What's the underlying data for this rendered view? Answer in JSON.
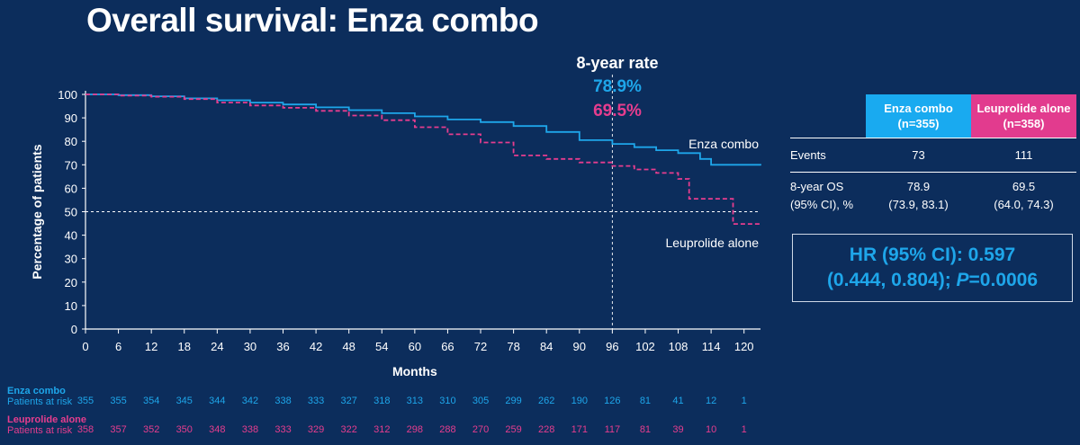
{
  "title": "Overall survival: Enza combo",
  "chart_data": {
    "type": "line",
    "subtype": "kaplan-meier",
    "xlabel": "Months",
    "ylabel": "Percentage of patients",
    "xlim": [
      0,
      123
    ],
    "ylim": [
      0,
      100
    ],
    "xticks": [
      0,
      6,
      12,
      18,
      24,
      30,
      36,
      42,
      48,
      54,
      60,
      66,
      72,
      78,
      84,
      90,
      96,
      102,
      108,
      114,
      120
    ],
    "yticks": [
      0,
      10,
      20,
      30,
      40,
      50,
      60,
      70,
      80,
      90,
      100
    ],
    "reference_y": 50,
    "reference_x": 96,
    "series": [
      {
        "name": "Enza combo",
        "color": "#1ea6ea",
        "style": "solid",
        "x": [
          0,
          6,
          12,
          18,
          24,
          30,
          36,
          42,
          48,
          54,
          60,
          66,
          72,
          78,
          84,
          90,
          96,
          100,
          104,
          108,
          112,
          114,
          120,
          123
        ],
        "y": [
          100,
          99.7,
          99.2,
          98.3,
          97.5,
          96.5,
          95.7,
          94.5,
          93.3,
          92,
          90.6,
          89.3,
          88.2,
          86.5,
          84,
          80.5,
          78.9,
          77.5,
          76.2,
          75,
          72.5,
          70,
          70,
          69.7
        ]
      },
      {
        "name": "Leuprolide alone",
        "color": "#e63d8e",
        "style": "dashed",
        "x": [
          0,
          6,
          12,
          18,
          24,
          30,
          36,
          42,
          48,
          54,
          60,
          66,
          72,
          78,
          84,
          90,
          96,
          100,
          104,
          108,
          110,
          114,
          117.5,
          118,
          120,
          123
        ],
        "y": [
          100,
          99.5,
          99,
          98,
          96.5,
          95.3,
          94.3,
          93,
          91,
          89,
          86,
          83,
          79.5,
          74,
          72.5,
          71,
          69.5,
          68,
          66.5,
          64,
          55.5,
          55.5,
          55.5,
          44.8,
          44.8,
          44.8
        ]
      }
    ],
    "series_labels": [
      "Enza combo",
      "Leuprolide alone"
    ],
    "annotation": {
      "title": "8-year rate",
      "values": [
        "78.9%",
        "69.5%"
      ]
    }
  },
  "stats_table": {
    "headers": [
      "Enza combo\n(n=355)",
      "Leuprolide alone\n(n=358)"
    ],
    "events_label": "Events",
    "events": [
      "73",
      "111"
    ],
    "os_label_1": "8-year OS",
    "os_label_2": "(95% CI), %",
    "os_rate": [
      "78.9",
      "69.5"
    ],
    "os_ci": [
      "(73.9, 83.1)",
      "(64.0, 74.3)"
    ]
  },
  "hr": {
    "line1": "HR (95% CI): 0.597",
    "line2a": "(0.444, 0.804); ",
    "p_italic": "P",
    "line2b": "=0.0006"
  },
  "risk_table": {
    "label": "Patients at risk",
    "groups": [
      {
        "name": "Enza combo",
        "color": "#1ea6ea",
        "counts": [
          "355",
          "355",
          "354",
          "345",
          "344",
          "342",
          "338",
          "333",
          "327",
          "318",
          "313",
          "310",
          "305",
          "299",
          "262",
          "190",
          "126",
          "81",
          "41",
          "12",
          "1"
        ]
      },
      {
        "name": "Leuprolide alone",
        "color": "#e63d8e",
        "counts": [
          "358",
          "357",
          "352",
          "350",
          "348",
          "338",
          "333",
          "329",
          "322",
          "312",
          "298",
          "288",
          "270",
          "259",
          "228",
          "171",
          "117",
          "81",
          "39",
          "10",
          "1"
        ]
      }
    ]
  }
}
